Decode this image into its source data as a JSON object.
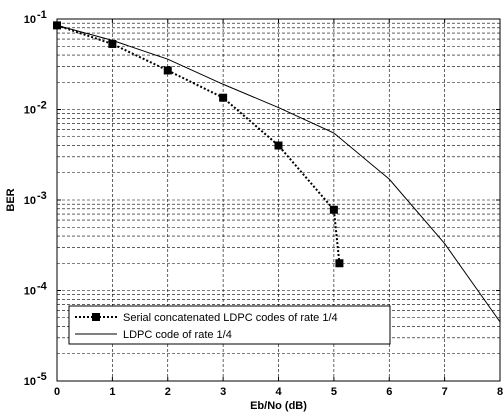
{
  "chart_data": {
    "type": "line",
    "xlabel": "Eb/No (dB)",
    "ylabel": "BER",
    "xlim": [
      0,
      8
    ],
    "ylim": [
      1e-05,
      0.1
    ],
    "y_scale": "log",
    "grid": "dashed, major and minor",
    "legend_position": "bottom-left",
    "x_ticks": [
      "0",
      "1",
      "2",
      "3",
      "4",
      "5",
      "6",
      "7",
      "8"
    ],
    "y_ticks": [
      {
        "base": "10",
        "exp": "-5",
        "value": 1e-05
      },
      {
        "base": "10",
        "exp": "-4",
        "value": 0.0001
      },
      {
        "base": "10",
        "exp": "-3",
        "value": 0.001
      },
      {
        "base": "10",
        "exp": "-2",
        "value": 0.01
      },
      {
        "base": "10",
        "exp": "-1",
        "value": 0.1
      }
    ],
    "series": [
      {
        "name": "Serial concatenated LDPC codes of rate 1/4",
        "style": "dotted",
        "marker": "square",
        "color": "#000000",
        "x": [
          0,
          1,
          2,
          3,
          4,
          5,
          5.1
        ],
        "y": [
          0.085,
          0.053,
          0.027,
          0.0135,
          0.004,
          0.00078,
          0.0002
        ]
      },
      {
        "name": "LDPC code of rate 1/4",
        "style": "solid",
        "marker": "none",
        "color": "#000000",
        "x": [
          0,
          1,
          2,
          3,
          4,
          5,
          6,
          7,
          8
        ],
        "y": [
          0.085,
          0.058,
          0.036,
          0.019,
          0.0105,
          0.0055,
          0.0017,
          0.00033,
          4.5e-05
        ]
      }
    ]
  }
}
